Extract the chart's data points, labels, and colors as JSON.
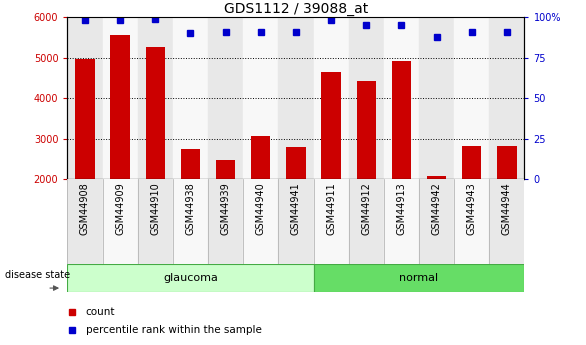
{
  "title": "GDS1112 / 39088_at",
  "samples": [
    "GSM44908",
    "GSM44909",
    "GSM44910",
    "GSM44938",
    "GSM44939",
    "GSM44940",
    "GSM44941",
    "GSM44911",
    "GSM44912",
    "GSM44913",
    "GSM44942",
    "GSM44943",
    "GSM44944"
  ],
  "counts": [
    4980,
    5550,
    5270,
    2750,
    2470,
    3080,
    2800,
    4650,
    4420,
    4930,
    2080,
    2820,
    2820
  ],
  "percentiles": [
    98,
    98,
    99,
    90,
    91,
    91,
    91,
    98,
    95,
    95,
    88,
    91,
    91
  ],
  "groups": [
    "glaucoma",
    "glaucoma",
    "glaucoma",
    "glaucoma",
    "glaucoma",
    "glaucoma",
    "glaucoma",
    "normal",
    "normal",
    "normal",
    "normal",
    "normal",
    "normal"
  ],
  "col_bg_light": "#e8e8e8",
  "col_bg_white": "#f8f8f8",
  "glaucoma_color": "#ccffcc",
  "normal_color": "#66dd66",
  "bar_color": "#cc0000",
  "dot_color": "#0000cc",
  "ymin": 2000,
  "ymax": 6000,
  "yticks_left": [
    2000,
    3000,
    4000,
    5000,
    6000
  ],
  "yticks_right": [
    0,
    25,
    50,
    75,
    100
  ],
  "title_fontsize": 10,
  "tick_fontsize": 7,
  "legend_labels": [
    "count",
    "percentile rank within the sample"
  ]
}
